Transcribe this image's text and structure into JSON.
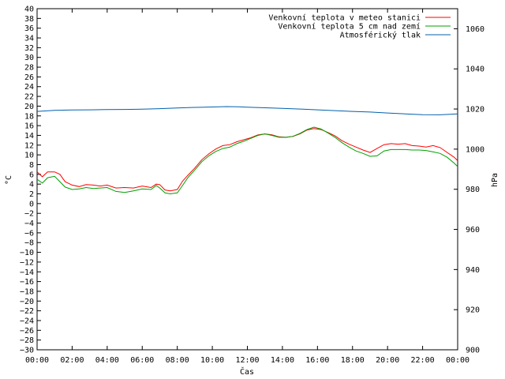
{
  "chart_data": {
    "type": "line",
    "xlabel": "Čas",
    "ylabel": "°C",
    "y2label": "hPa",
    "grid": false,
    "legend_position": "top-right",
    "x_ticks": [
      "00:00",
      "02:00",
      "04:00",
      "06:00",
      "08:00",
      "10:00",
      "12:00",
      "14:00",
      "16:00",
      "18:00",
      "20:00",
      "22:00",
      "00:00"
    ],
    "xlim_hours": [
      0,
      24
    ],
    "ylim": [
      -30,
      40
    ],
    "y_tick_step": 2,
    "y2lim": [
      900,
      1070
    ],
    "y2_ticks": [
      900,
      920,
      940,
      960,
      980,
      1000,
      1020,
      1040,
      1060
    ],
    "series": [
      {
        "name": "Venkovní teplota v meteo stanici",
        "color": "#ff0000",
        "axis": "left",
        "x_hours": [
          0,
          0.3,
          0.6,
          1,
          1.3,
          1.6,
          2,
          2.4,
          2.8,
          3.2,
          3.6,
          4,
          4.5,
          5,
          5.5,
          6,
          6.5,
          6.8,
          7,
          7.3,
          7.6,
          8,
          8.3,
          8.6,
          9,
          9.4,
          9.8,
          10.2,
          10.6,
          11,
          11.4,
          11.8,
          12.2,
          12.6,
          13,
          13.4,
          13.8,
          14.2,
          14.6,
          15,
          15.4,
          15.8,
          16.2,
          16.6,
          17,
          17.4,
          17.8,
          18.2,
          18.6,
          19,
          19.4,
          19.8,
          20.2,
          20.6,
          21,
          21.4,
          21.8,
          22.2,
          22.6,
          23,
          23.4,
          23.8,
          24
        ],
        "values": [
          6.5,
          5.5,
          6.5,
          6.5,
          6,
          4.5,
          3.8,
          3.5,
          3.9,
          3.8,
          3.6,
          3.8,
          3.2,
          3.3,
          3.2,
          3.6,
          3.3,
          4,
          3.9,
          2.8,
          2.6,
          2.9,
          4.6,
          5.8,
          7.3,
          9,
          10.2,
          11.2,
          11.9,
          12.1,
          12.7,
          13.1,
          13.5,
          14.1,
          14.3,
          14.1,
          13.7,
          13.6,
          13.8,
          14.3,
          15.1,
          15.4,
          15.2,
          14.6,
          13.9,
          12.9,
          12.2,
          11.6,
          11,
          10.5,
          11.3,
          12.1,
          12.3,
          12.2,
          12.3,
          11.9,
          11.8,
          11.6,
          11.9,
          11.5,
          10.5,
          9.5,
          8.8
        ]
      },
      {
        "name": "Venkovní teplota 5 cm nad zemí",
        "color": "#00a000",
        "axis": "left",
        "x_hours": [
          0,
          0.3,
          0.6,
          1,
          1.3,
          1.6,
          2,
          2.4,
          2.8,
          3.2,
          3.6,
          4,
          4.5,
          5,
          5.5,
          6,
          6.5,
          6.8,
          7,
          7.3,
          7.6,
          8,
          8.3,
          8.6,
          9,
          9.4,
          9.8,
          10.2,
          10.6,
          11,
          11.4,
          11.8,
          12.2,
          12.6,
          13,
          13.4,
          13.8,
          14.2,
          14.6,
          15,
          15.4,
          15.8,
          16.2,
          16.6,
          17,
          17.4,
          17.8,
          18.2,
          18.6,
          19,
          19.4,
          19.8,
          20.2,
          20.6,
          21,
          21.4,
          21.8,
          22.2,
          22.6,
          23,
          23.4,
          23.8,
          24
        ],
        "values": [
          5,
          4.2,
          5.3,
          5.6,
          4.5,
          3.4,
          2.9,
          3,
          3.3,
          3.1,
          3.2,
          3.3,
          2.5,
          2.3,
          2.6,
          3,
          2.9,
          3.7,
          3.2,
          2.2,
          2,
          2.2,
          3.7,
          5.3,
          6.9,
          8.6,
          9.8,
          10.7,
          11.3,
          11.6,
          12.3,
          12.8,
          13.4,
          14,
          14.3,
          14,
          13.6,
          13.6,
          13.8,
          14.4,
          15.2,
          15.7,
          15.3,
          14.5,
          13.6,
          12.5,
          11.6,
          10.8,
          10.3,
          9.7,
          9.8,
          10.8,
          11.1,
          11.1,
          11.1,
          11,
          11,
          10.9,
          10.6,
          10.3,
          9.5,
          8.3,
          7.6
        ]
      },
      {
        "name": "Atmosférický tlak",
        "color": "#0060ad",
        "axis": "right",
        "x_hours": [
          0,
          1,
          2,
          3,
          4,
          5,
          6,
          7,
          8,
          9,
          10,
          10.8,
          11.5,
          12,
          13,
          14,
          15,
          16,
          17,
          18,
          19,
          20,
          21,
          22,
          23,
          24
        ],
        "values": [
          1018.8,
          1019.3,
          1019.5,
          1019.6,
          1019.7,
          1019.8,
          1019.9,
          1020.2,
          1020.5,
          1020.8,
          1021,
          1021.2,
          1021.1,
          1020.9,
          1020.6,
          1020.3,
          1020,
          1019.6,
          1019.2,
          1018.8,
          1018.5,
          1018,
          1017.6,
          1017.2,
          1017.1,
          1017.6
        ]
      }
    ]
  }
}
